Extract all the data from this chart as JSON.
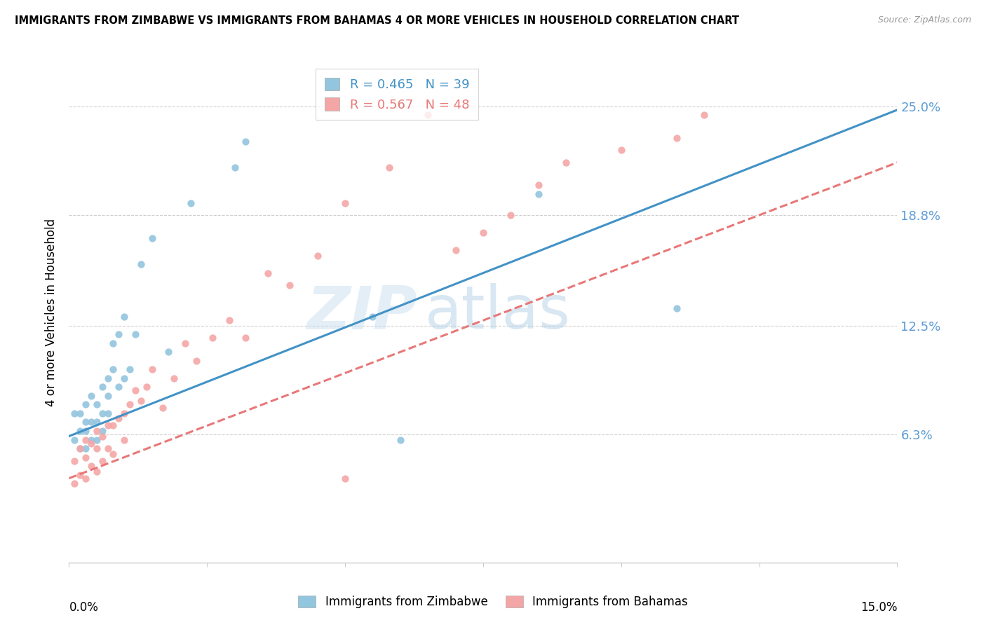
{
  "title": "IMMIGRANTS FROM ZIMBABWE VS IMMIGRANTS FROM BAHAMAS 4 OR MORE VEHICLES IN HOUSEHOLD CORRELATION CHART",
  "source": "Source: ZipAtlas.com",
  "ylabel": "4 or more Vehicles in Household",
  "ytick_labels": [
    "6.3%",
    "12.5%",
    "18.8%",
    "25.0%"
  ],
  "ytick_values": [
    0.063,
    0.125,
    0.188,
    0.25
  ],
  "xlim": [
    0.0,
    0.15
  ],
  "ylim": [
    -0.01,
    0.275
  ],
  "legend_r_zimbabwe": "R = 0.465",
  "legend_n_zimbabwe": "N = 39",
  "legend_r_bahamas": "R = 0.567",
  "legend_n_bahamas": "N = 48",
  "color_zimbabwe": "#92c5de",
  "color_bahamas": "#f4a6a6",
  "color_line_zimbabwe": "#4292c6",
  "color_line_bahamas": "#e87878",
  "watermark_zip": "ZIP",
  "watermark_atlas": "atlas",
  "zim_line_x": [
    0.0,
    0.15
  ],
  "zim_line_y": [
    0.062,
    0.248
  ],
  "bah_line_x": [
    0.0,
    0.15
  ],
  "bah_line_y": [
    0.038,
    0.218
  ],
  "zimbabwe_x": [
    0.001,
    0.001,
    0.002,
    0.002,
    0.002,
    0.003,
    0.003,
    0.003,
    0.003,
    0.004,
    0.004,
    0.004,
    0.005,
    0.005,
    0.005,
    0.006,
    0.006,
    0.006,
    0.007,
    0.007,
    0.007,
    0.008,
    0.008,
    0.009,
    0.009,
    0.01,
    0.01,
    0.011,
    0.012,
    0.013,
    0.015,
    0.018,
    0.022,
    0.03,
    0.032,
    0.055,
    0.06,
    0.085,
    0.11
  ],
  "zimbabwe_y": [
    0.06,
    0.075,
    0.055,
    0.065,
    0.075,
    0.055,
    0.065,
    0.07,
    0.08,
    0.06,
    0.07,
    0.085,
    0.06,
    0.07,
    0.08,
    0.065,
    0.075,
    0.09,
    0.075,
    0.085,
    0.095,
    0.1,
    0.115,
    0.09,
    0.12,
    0.095,
    0.13,
    0.1,
    0.12,
    0.16,
    0.175,
    0.11,
    0.195,
    0.215,
    0.23,
    0.13,
    0.06,
    0.2,
    0.135
  ],
  "bahamas_x": [
    0.001,
    0.001,
    0.002,
    0.002,
    0.003,
    0.003,
    0.003,
    0.004,
    0.004,
    0.005,
    0.005,
    0.005,
    0.006,
    0.006,
    0.007,
    0.007,
    0.008,
    0.008,
    0.009,
    0.01,
    0.01,
    0.011,
    0.012,
    0.013,
    0.014,
    0.015,
    0.017,
    0.019,
    0.021,
    0.023,
    0.026,
    0.029,
    0.032,
    0.036,
    0.04,
    0.045,
    0.05,
    0.058,
    0.065,
    0.07,
    0.075,
    0.08,
    0.085,
    0.09,
    0.1,
    0.11,
    0.115,
    0.05
  ],
  "bahamas_y": [
    0.035,
    0.048,
    0.04,
    0.055,
    0.038,
    0.05,
    0.06,
    0.045,
    0.058,
    0.042,
    0.055,
    0.065,
    0.048,
    0.062,
    0.055,
    0.068,
    0.052,
    0.068,
    0.072,
    0.06,
    0.075,
    0.08,
    0.088,
    0.082,
    0.09,
    0.1,
    0.078,
    0.095,
    0.115,
    0.105,
    0.118,
    0.128,
    0.118,
    0.155,
    0.148,
    0.165,
    0.195,
    0.215,
    0.245,
    0.168,
    0.178,
    0.188,
    0.205,
    0.218,
    0.225,
    0.232,
    0.245,
    0.038
  ]
}
